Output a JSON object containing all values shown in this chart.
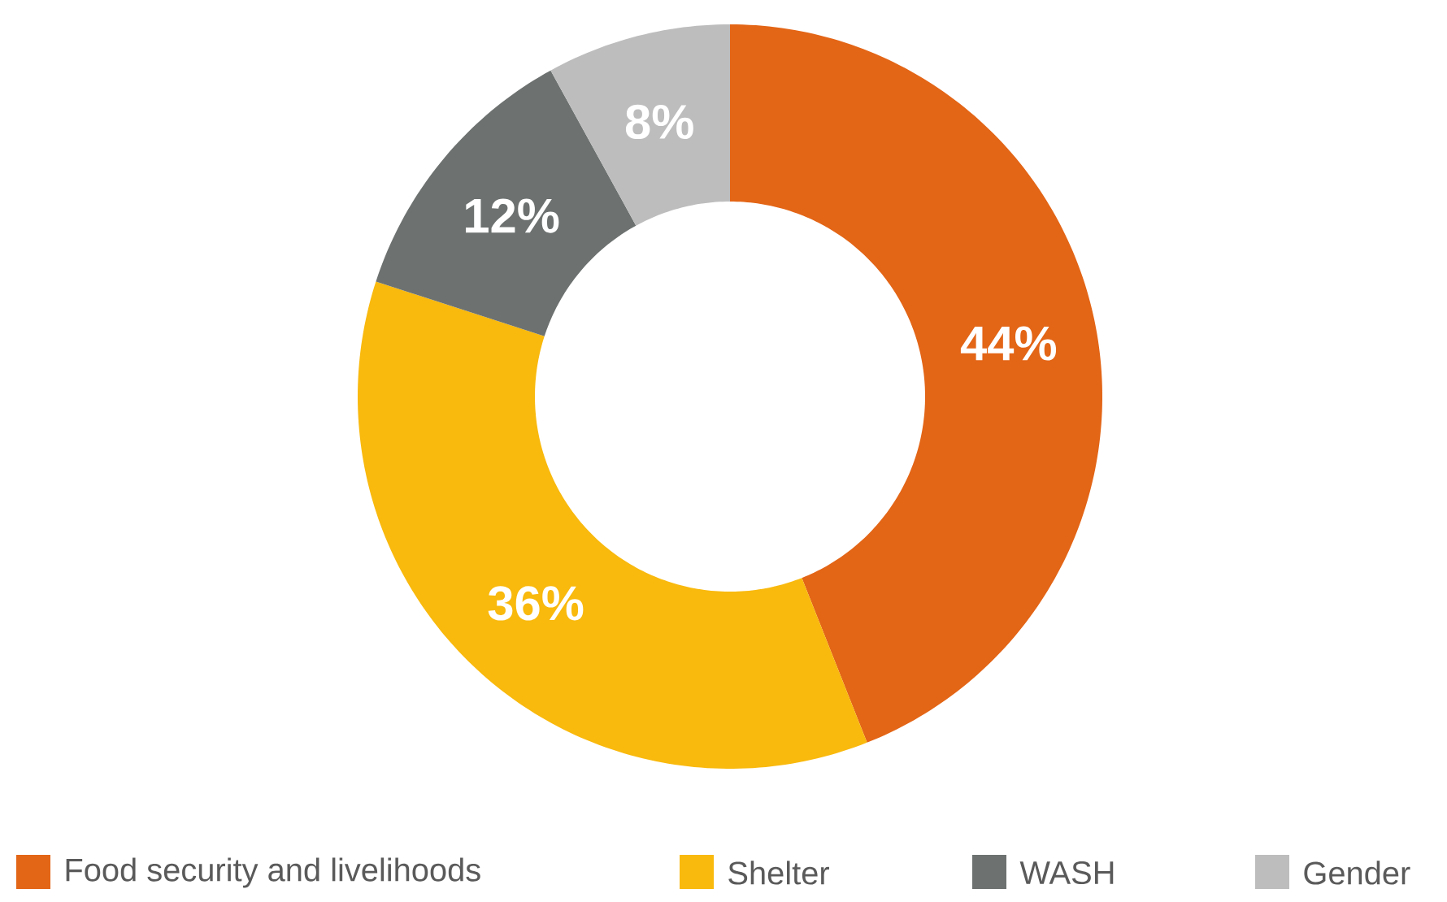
{
  "chart_data": {
    "type": "donut",
    "categories": [
      "Food security and livelihoods",
      "Shelter",
      "WASH",
      "Gender"
    ],
    "values": [
      44,
      36,
      12,
      8
    ],
    "colors": [
      "#e36516",
      "#f9b90d",
      "#6d7270",
      "#bdbdbd"
    ],
    "value_labels": [
      "44%",
      "36%",
      "12%",
      "8%"
    ],
    "legend": "bottom"
  }
}
